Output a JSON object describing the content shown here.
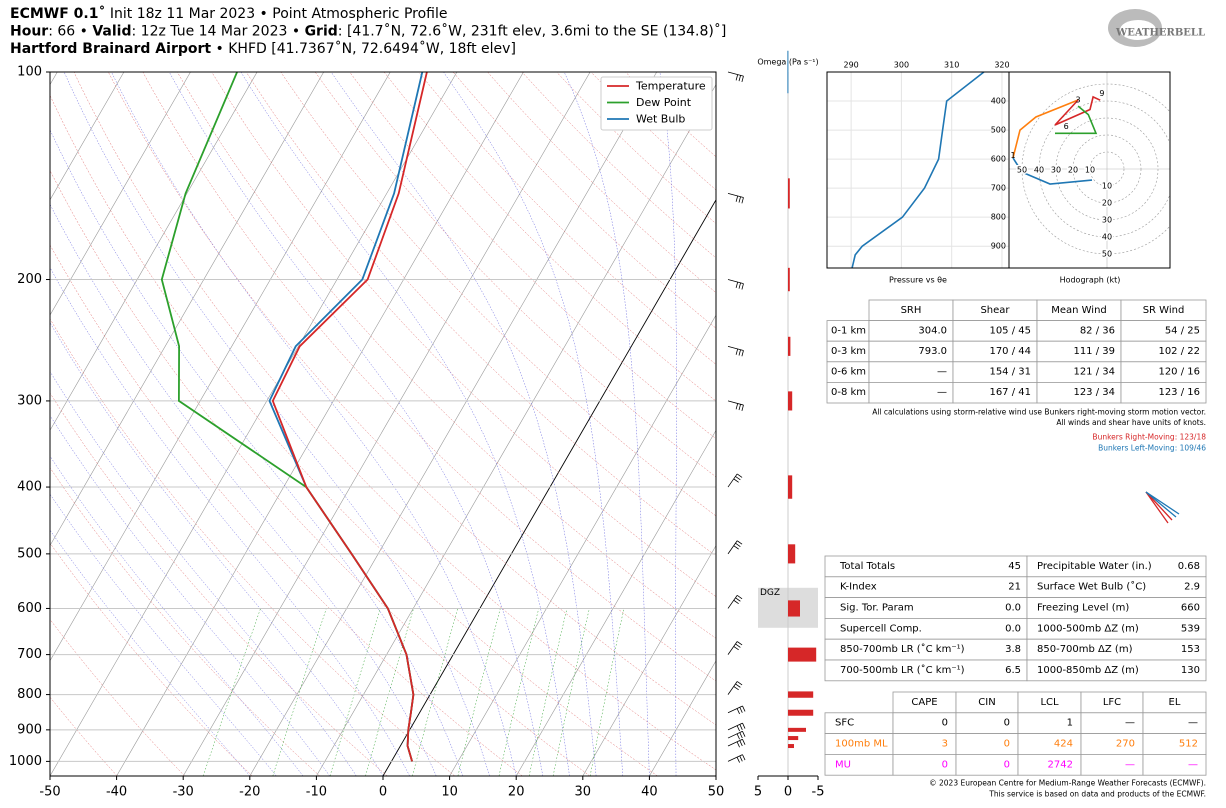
{
  "header": {
    "lines": [
      [
        {
          "t": "ECMWF 0.1˚",
          "b": true
        },
        {
          "t": " Init 18z 11 Mar 2023 • Point Atmospheric Profile",
          "b": false
        }
      ],
      [
        {
          "t": "Hour",
          "b": true
        },
        {
          "t": ": 66 • ",
          "b": false
        },
        {
          "t": "Valid",
          "b": true
        },
        {
          "t": ": 12z Tue 14 Mar 2023 • ",
          "b": false
        },
        {
          "t": "Grid",
          "b": true
        },
        {
          "t": ": [41.7˚N, 72.6˚W, 231ft elev, 3.6mi to the SE (134.8)˚]",
          "b": false
        }
      ],
      [
        {
          "t": "Hartford Brainard Airport",
          "b": true
        },
        {
          "t": " • KHFD [41.7367˚N, 72.6494˚W, 18ft elev]",
          "b": false
        }
      ]
    ],
    "logo": "WEATHERBELL"
  },
  "chart_data": [
    {
      "type": "skewt",
      "pressure": [
        1000,
        950,
        900,
        850,
        800,
        700,
        600,
        500,
        400,
        300,
        250,
        200,
        150,
        100
      ],
      "series": [
        {
          "name": "Temperature",
          "color": "#d62728",
          "values": [
            3.1,
            1.1,
            -0.2,
            -1.3,
            -2.5,
            -7.0,
            -13.8,
            -24.0,
            -36.6,
            -49.1,
            -49.8,
            -45.4,
            -48.2,
            -54.5
          ]
        },
        {
          "name": "Dew Point",
          "color": "#2ca02c",
          "values": [
            3.1,
            1.1,
            -0.2,
            -1.3,
            -2.5,
            -7.0,
            -13.8,
            -24.0,
            -36.6,
            -63.2,
            -67.9,
            -76.3,
            -80.2,
            -83.0
          ]
        },
        {
          "name": "Wet Bulb",
          "color": "#1f77b4",
          "values": [
            3.1,
            1.1,
            -0.2,
            -1.3,
            -2.5,
            -7.0,
            -13.8,
            -24.0,
            -36.6,
            -49.6,
            -50.4,
            -46.2,
            -48.9,
            -55.2
          ]
        }
      ],
      "xlim": [
        -50,
        50
      ],
      "xticks": [
        -50,
        -40,
        -30,
        -20,
        -10,
        0,
        10,
        20,
        30,
        40,
        50
      ],
      "ylim": [
        1050,
        100
      ],
      "yticks": [
        100,
        200,
        300,
        400,
        500,
        600,
        700,
        800,
        900,
        1000
      ],
      "log_y": true,
      "grid": true,
      "legend": "upper right"
    },
    {
      "type": "omega",
      "title": "Omega (Pa s⁻¹)",
      "pressure": [
        950,
        925,
        900,
        850,
        800,
        700,
        600,
        500,
        400,
        300,
        250,
        200,
        150,
        100
      ],
      "values": [
        -1.0,
        -1.7,
        -3.0,
        -4.2,
        -4.2,
        -4.7,
        -2.0,
        -1.2,
        -0.7,
        -0.7,
        -0.4,
        -0.3,
        -0.3,
        0.1
      ],
      "color": "#d62728",
      "positive_color": "#1f77b4",
      "xlim": [
        5,
        -5
      ],
      "xticks": [
        5,
        0,
        -5
      ],
      "ylim": [
        1050,
        100
      ],
      "dgz": {
        "label": "DGZ",
        "pressure": [
          560,
          640
        ]
      }
    },
    {
      "type": "theta",
      "xlabel": "Pressure vs θe",
      "pressure": [
        300,
        400,
        500,
        600,
        700,
        800,
        900,
        930,
        975
      ],
      "values": [
        316.4,
        309,
        308.2,
        307.4,
        304.6,
        300.2,
        292.2,
        290.8,
        290.2
      ],
      "color": "#1f77b4",
      "xlim": [
        285.2,
        321.4
      ],
      "xticks": [
        290,
        300,
        310,
        320
      ],
      "ylim": [
        975,
        300
      ],
      "yticks": [
        400,
        500,
        600,
        700,
        800,
        900
      ],
      "grid": true
    },
    {
      "type": "hodograph",
      "xlabel": "Hodograph (kt)",
      "rings": [
        10,
        20,
        30,
        40,
        50
      ],
      "series": [
        {
          "color": "#1f77b4",
          "u": [
            -8.8,
            -33.5,
            -50,
            -55.3
          ],
          "v": [
            -6.5,
            -8.8,
            -1.8,
            6.5
          ]
        },
        {
          "color": "#ff7f0e",
          "u": [
            -55.3,
            -51.2,
            -41.8,
            -17
          ],
          "v": [
            6.5,
            22.9,
            30.6,
            40.6
          ]
        },
        {
          "color": "#d62728",
          "u": [
            -17,
            -30.6,
            -10,
            -8.2,
            -4
          ],
          "v": [
            40.6,
            25.9,
            35,
            42.4,
            40.5
          ]
        },
        {
          "color": "#2ca02c",
          "u": [
            -30.6,
            -6.5,
            -11,
            -17
          ],
          "v": [
            21,
            21,
            32,
            37
          ]
        }
      ],
      "annotations": [
        {
          "text": "1",
          "u": -55.3,
          "v": 8
        },
        {
          "text": "3",
          "u": -17,
          "v": 40.6
        },
        {
          "text": "6",
          "u": -24,
          "v": 25
        },
        {
          "text": "9",
          "u": -3,
          "v": 44.5
        }
      ]
    }
  ],
  "srh_table": {
    "columns": [
      "SRH",
      "Shear",
      "Mean Wind",
      "SR Wind"
    ],
    "rows": [
      [
        "0-1 km",
        "304.0",
        "105 / 45",
        "82 / 36",
        "54 / 25"
      ],
      [
        "0-3 km",
        "793.0",
        "170 / 44",
        "111 / 39",
        "102 / 22"
      ],
      [
        "0-6 km",
        "—",
        "154 / 31",
        "121 / 34",
        "120 / 16"
      ],
      [
        "0-8 km",
        "—",
        "167 / 41",
        "123 / 34",
        "123 / 16"
      ]
    ]
  },
  "notes": [
    "All calculations using storm-relative wind use Bunkers right-moving storm motion vector.",
    "All winds and shear have units of knots."
  ],
  "bunkers": [
    {
      "text": "Bunkers Right-Moving: 123/18",
      "color": "#d62728"
    },
    {
      "text": "Bunkers Left-Moving: 109/46",
      "color": "#1f77b4"
    }
  ],
  "indices_table": {
    "rows": [
      [
        "Total Totals",
        "45",
        "Precipitable Water (in.)",
        "0.68"
      ],
      [
        "K-Index",
        "21",
        "Surface Wet Bulb (˚C)",
        "2.9"
      ],
      [
        "Sig. Tor. Param",
        "0.0",
        "Freezing Level (m)",
        "660"
      ],
      [
        "Supercell Comp.",
        "0.0",
        "1000-500mb ΔZ (m)",
        "539"
      ],
      [
        "850-700mb LR (˚C km⁻¹)",
        "3.8",
        "850-700mb ΔZ (m)",
        "153"
      ],
      [
        "700-500mb LR (˚C km⁻¹)",
        "6.5",
        "1000-850mb ΔZ (m)",
        "130"
      ]
    ]
  },
  "parcel_table": {
    "columns": [
      "CAPE",
      "CIN",
      "LCL",
      "LFC",
      "EL"
    ],
    "row_colors": [
      "#000000",
      "#ff7f0e",
      "#ff00ff"
    ],
    "rows": [
      [
        "SFC",
        "0",
        "0",
        "1",
        "—",
        "—"
      ],
      [
        "100mb ML",
        "3",
        "0",
        "424",
        "270",
        "512"
      ],
      [
        "MU",
        "0",
        "0",
        "2742",
        "—",
        "—"
      ]
    ]
  },
  "footer": [
    "© 2023 European Centre for Medium-Range Weather Forecasts (ECMWF).",
    "This service is based on data and products of the ECMWF."
  ]
}
